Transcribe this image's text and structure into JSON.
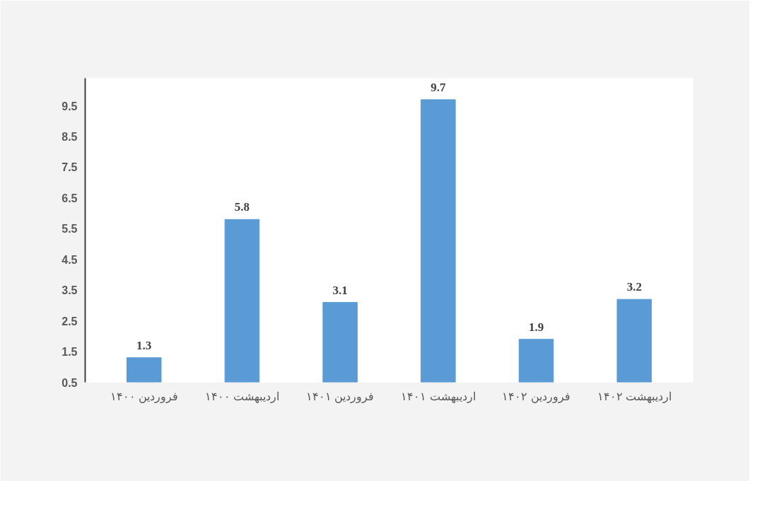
{
  "chart_data": {
    "type": "bar",
    "categories": [
      "فروردین ۱۴۰۰",
      "اردیبهشت ۱۴۰۰",
      "فروردین ۱۴۰۱",
      "اردیبهشت ۱۴۰۱",
      "فروردین ۱۴۰۲",
      "اردیبهشت ۱۴۰۲"
    ],
    "values": [
      1.3,
      5.8,
      3.1,
      9.7,
      1.9,
      3.2
    ],
    "color": "#5b9bd5",
    "ylim": [
      0.5,
      10.4
    ],
    "yticks": [
      0.5,
      1.5,
      2.5,
      3.5,
      4.5,
      5.5,
      6.5,
      7.5,
      8.5,
      9.5
    ],
    "data_labels": true,
    "grid": false
  }
}
